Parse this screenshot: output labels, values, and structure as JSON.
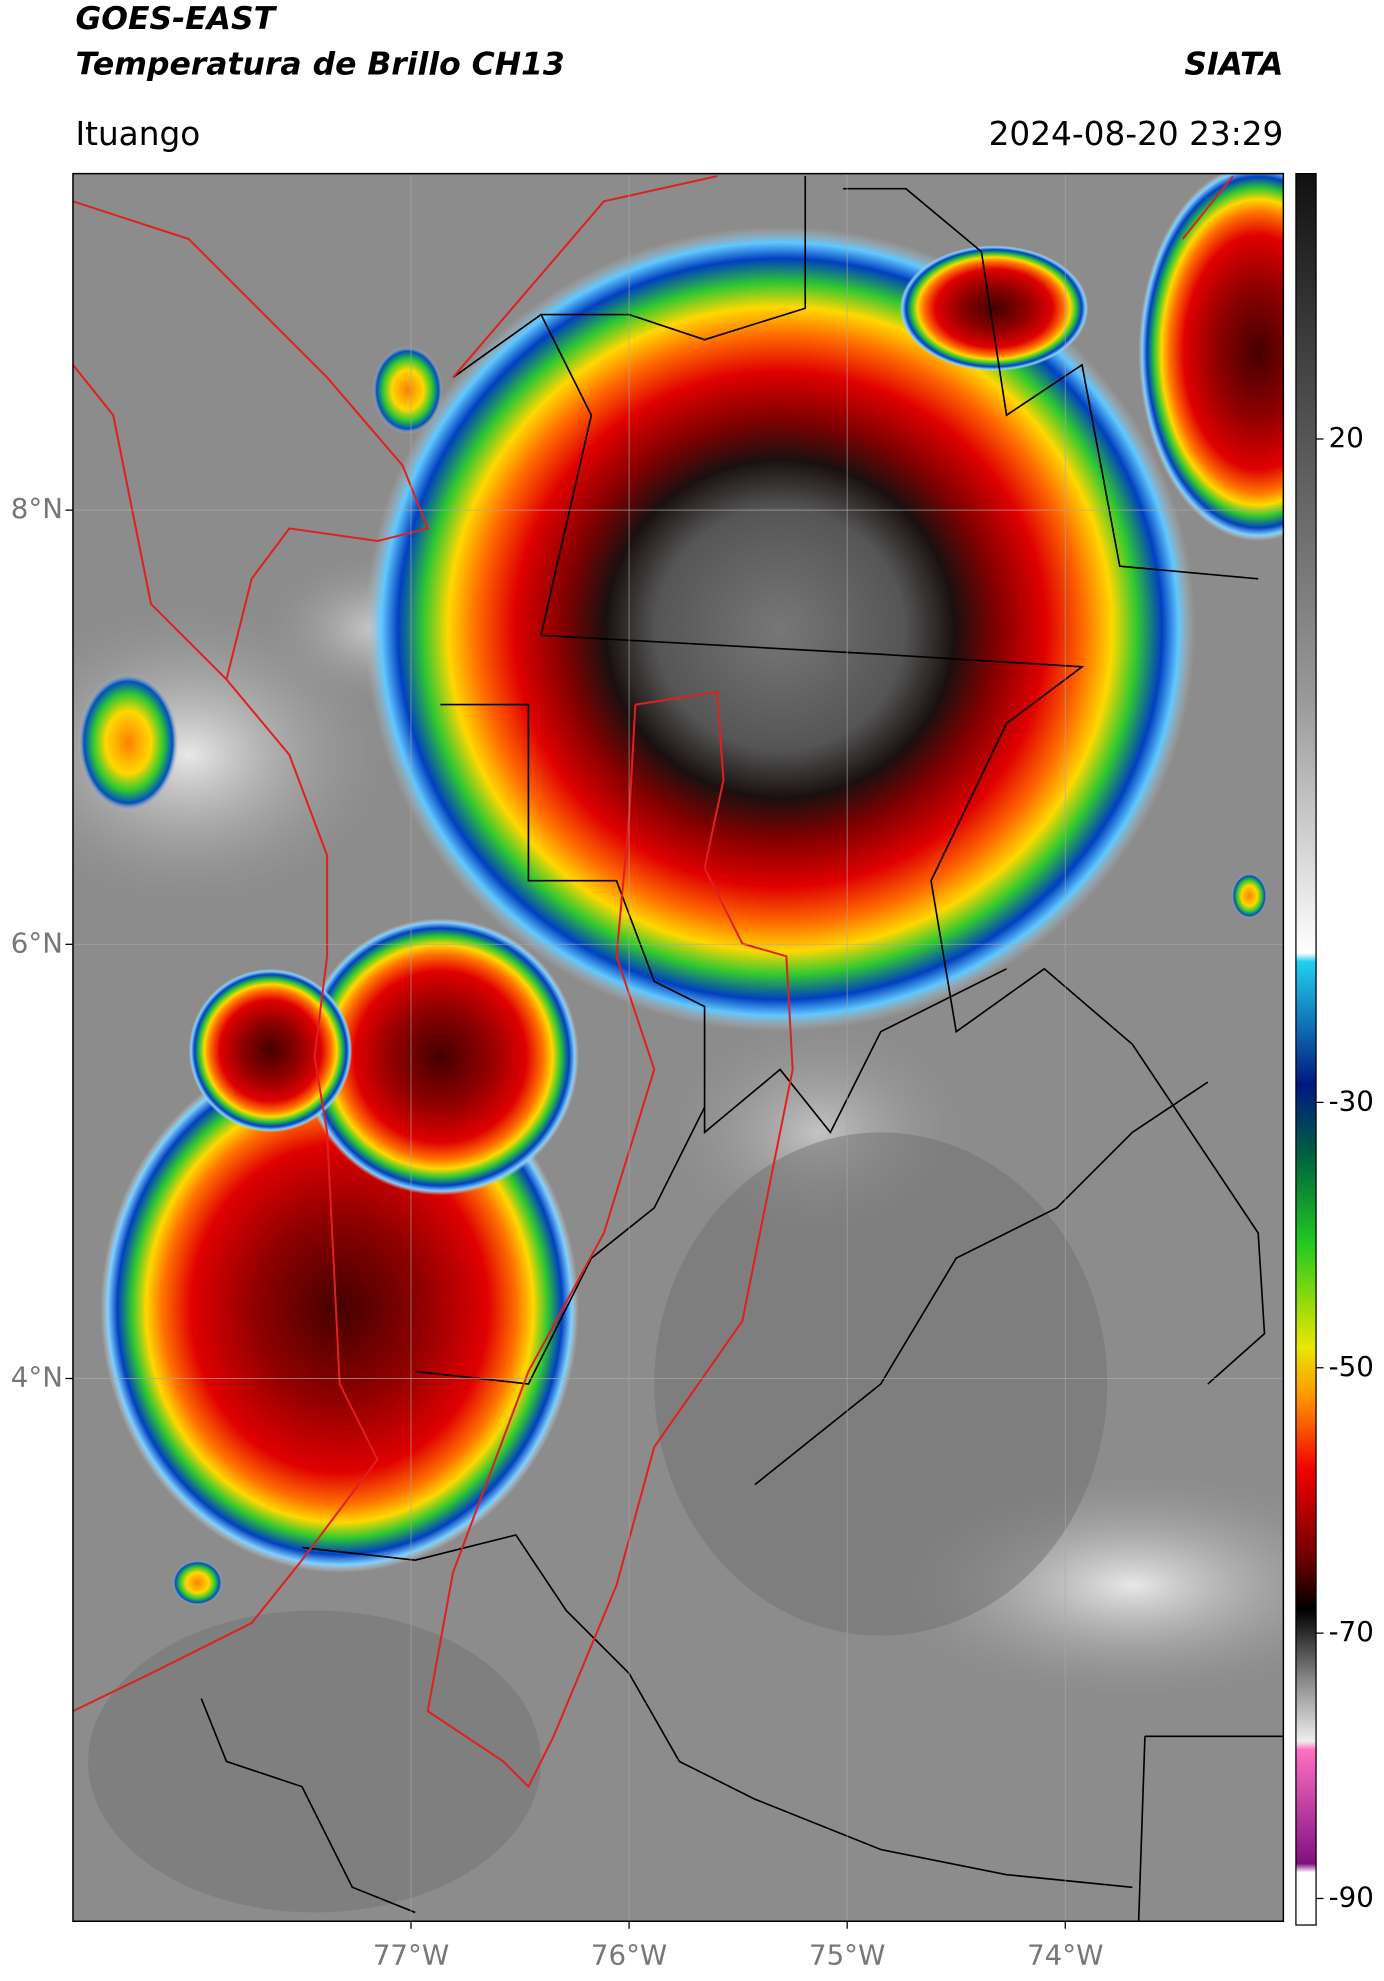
{
  "header": {
    "title": "GOES-EAST",
    "subtitle": "Temperatura de Brillo CH13",
    "brand": "SIATA",
    "location": "Ituango",
    "timestamp": "2024-08-20 23:29"
  },
  "map": {
    "xlim": [
      -78.55,
      -73.0
    ],
    "ylim": [
      1.5,
      9.55
    ],
    "xticks": [
      {
        "value": -77,
        "label": "77°W"
      },
      {
        "value": -76,
        "label": "76°W"
      },
      {
        "value": -75,
        "label": "75°W"
      },
      {
        "value": -74,
        "label": "74°W"
      }
    ],
    "yticks": [
      {
        "value": 8,
        "label": "8°N"
      },
      {
        "value": 6,
        "label": "6°N"
      },
      {
        "value": 4,
        "label": "4°N"
      }
    ],
    "grid": true
  },
  "colorbar": {
    "lim": [
      -92,
      40
    ],
    "ticks": [
      20,
      -30,
      -50,
      -70,
      -90
    ]
  }
}
